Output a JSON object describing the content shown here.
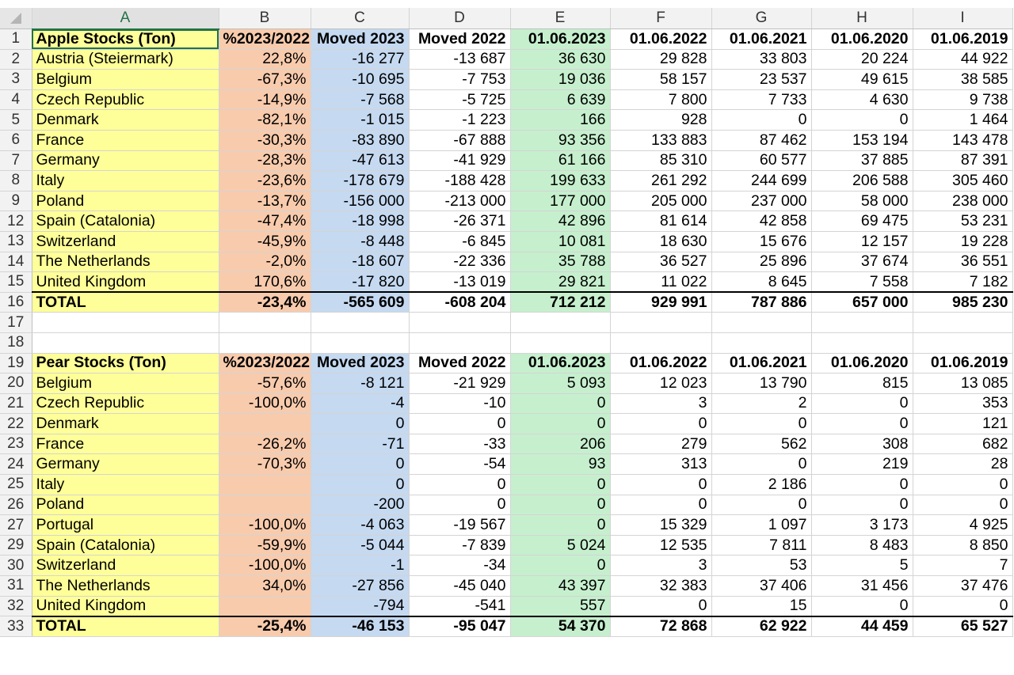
{
  "spreadsheet": {
    "columns": [
      "A",
      "B",
      "C",
      "D",
      "E",
      "F",
      "G",
      "H",
      "I"
    ],
    "selected_column": "A",
    "active_cell": "A1",
    "rows": [
      {
        "row": "1",
        "type": "header",
        "cells": [
          "Apple Stocks (Ton)",
          "%2023/2022",
          "Moved 2023",
          "Moved 2022",
          "01.06.2023",
          "01.06.2022",
          "01.06.2021",
          "01.06.2020",
          "01.06.2019"
        ]
      },
      {
        "row": "2",
        "type": "data",
        "cells": [
          "Austria (Steiermark)",
          "22,8%",
          "-16 277",
          "-13 687",
          "36 630",
          "29 828",
          "33 803",
          "20 224",
          "44 922"
        ]
      },
      {
        "row": "3",
        "type": "data",
        "cells": [
          "Belgium",
          "-67,3%",
          "-10 695",
          "-7 753",
          "19 036",
          "58 157",
          "23 537",
          "49 615",
          "38 585"
        ]
      },
      {
        "row": "4",
        "type": "data",
        "cells": [
          "Czech Republic",
          "-14,9%",
          "-7 568",
          "-5 725",
          "6 639",
          "7 800",
          "7 733",
          "4 630",
          "9 738"
        ]
      },
      {
        "row": "5",
        "type": "data",
        "cells": [
          "Denmark",
          "-82,1%",
          "-1 015",
          "-1 223",
          "166",
          "928",
          "0",
          "0",
          "1 464"
        ]
      },
      {
        "row": "6",
        "type": "data",
        "cells": [
          "France",
          "-30,3%",
          "-83 890",
          "-67 888",
          "93 356",
          "133 883",
          "87 462",
          "153 194",
          "143 478"
        ]
      },
      {
        "row": "7",
        "type": "data",
        "cells": [
          "Germany",
          "-28,3%",
          "-47 613",
          "-41 929",
          "61 166",
          "85 310",
          "60 577",
          "37 885",
          "87 391"
        ]
      },
      {
        "row": "8",
        "type": "data",
        "cells": [
          "Italy",
          "-23,6%",
          "-178 679",
          "-188 428",
          "199 633",
          "261 292",
          "244 699",
          "206 588",
          "305 460"
        ]
      },
      {
        "row": "9",
        "type": "data",
        "cells": [
          "Poland",
          "-13,7%",
          "-156 000",
          "-213 000",
          "177 000",
          "205 000",
          "237 000",
          "58 000",
          "238 000"
        ]
      },
      {
        "row": "12",
        "type": "data",
        "cells": [
          "Spain (Catalonia)",
          "-47,4%",
          "-18 998",
          "-26 371",
          "42 896",
          "81 614",
          "42 858",
          "69 475",
          "53 231"
        ]
      },
      {
        "row": "13",
        "type": "data",
        "cells": [
          "Switzerland",
          "-45,9%",
          "-8 448",
          "-6 845",
          "10 081",
          "18 630",
          "15 676",
          "12 157",
          "19 228"
        ]
      },
      {
        "row": "14",
        "type": "data",
        "cells": [
          "The Netherlands",
          "-2,0%",
          "-18 607",
          "-22 336",
          "35 788",
          "36 527",
          "25 896",
          "37 674",
          "36 551"
        ]
      },
      {
        "row": "15",
        "type": "data",
        "cells": [
          "United Kingdom",
          "170,6%",
          "-17 820",
          "-13 019",
          "29 821",
          "11 022",
          "8 645",
          "7 558",
          "7 182"
        ]
      },
      {
        "row": "16",
        "type": "total",
        "cells": [
          "TOTAL",
          "-23,4%",
          "-565 609",
          "-608 204",
          "712 212",
          "929 991",
          "787 886",
          "657 000",
          "985 230"
        ]
      },
      {
        "row": "17",
        "type": "empty",
        "cells": [
          "",
          "",
          "",
          "",
          "",
          "",
          "",
          "",
          ""
        ]
      },
      {
        "row": "18",
        "type": "empty",
        "cells": [
          "",
          "",
          "",
          "",
          "",
          "",
          "",
          "",
          ""
        ]
      },
      {
        "row": "19",
        "type": "header",
        "cells": [
          "Pear Stocks (Ton)",
          "%2023/2022",
          "Moved 2023",
          "Moved 2022",
          "01.06.2023",
          "01.06.2022",
          "01.06.2021",
          "01.06.2020",
          "01.06.2019"
        ]
      },
      {
        "row": "20",
        "type": "data",
        "cells": [
          "Belgium",
          "-57,6%",
          "-8 121",
          "-21 929",
          "5 093",
          "12 023",
          "13 790",
          "815",
          "13 085"
        ]
      },
      {
        "row": "21",
        "type": "data",
        "cells": [
          "Czech Republic",
          "-100,0%",
          "-4",
          "-10",
          "0",
          "3",
          "2",
          "0",
          "353"
        ]
      },
      {
        "row": "22",
        "type": "data",
        "cells": [
          "Denmark",
          "",
          "0",
          "0",
          "0",
          "0",
          "0",
          "0",
          "121"
        ]
      },
      {
        "row": "23",
        "type": "data",
        "cells": [
          "France",
          "-26,2%",
          "-71",
          "-33",
          "206",
          "279",
          "562",
          "308",
          "682"
        ]
      },
      {
        "row": "24",
        "type": "data",
        "cells": [
          "Germany",
          "-70,3%",
          "0",
          "-54",
          "93",
          "313",
          "0",
          "219",
          "28"
        ]
      },
      {
        "row": "25",
        "type": "data",
        "cells": [
          "Italy",
          "",
          "0",
          "0",
          "0",
          "0",
          "2 186",
          "0",
          "0"
        ]
      },
      {
        "row": "26",
        "type": "data",
        "cells": [
          "Poland",
          "",
          "-200",
          "0",
          "0",
          "0",
          "0",
          "0",
          "0"
        ]
      },
      {
        "row": "27",
        "type": "data",
        "cells": [
          "Portugal",
          "-100,0%",
          "-4 063",
          "-19 567",
          "0",
          "15 329",
          "1 097",
          "3 173",
          "4 925"
        ]
      },
      {
        "row": "29",
        "type": "data",
        "cells": [
          "Spain (Catalonia)",
          "-59,9%",
          "-5 044",
          "-7 839",
          "5 024",
          "12 535",
          "7 811",
          "8 483",
          "8 850"
        ]
      },
      {
        "row": "30",
        "type": "data",
        "cells": [
          "Switzerland",
          "-100,0%",
          "-1",
          "-34",
          "0",
          "3",
          "53",
          "5",
          "7"
        ]
      },
      {
        "row": "31",
        "type": "data",
        "cells": [
          "The Netherlands",
          "34,0%",
          "-27 856",
          "-45 040",
          "43 397",
          "32 383",
          "37 406",
          "31 456",
          "37 476"
        ]
      },
      {
        "row": "32",
        "type": "data",
        "cells": [
          "United Kingdom",
          "",
          "-794",
          "-541",
          "557",
          "0",
          "15",
          "0",
          "0"
        ]
      },
      {
        "row": "33",
        "type": "total",
        "cells": [
          "TOTAL",
          "-25,4%",
          "-46 153",
          "-95 047",
          "54 370",
          "72 868",
          "62 922",
          "44 459",
          "65 527"
        ]
      }
    ]
  }
}
